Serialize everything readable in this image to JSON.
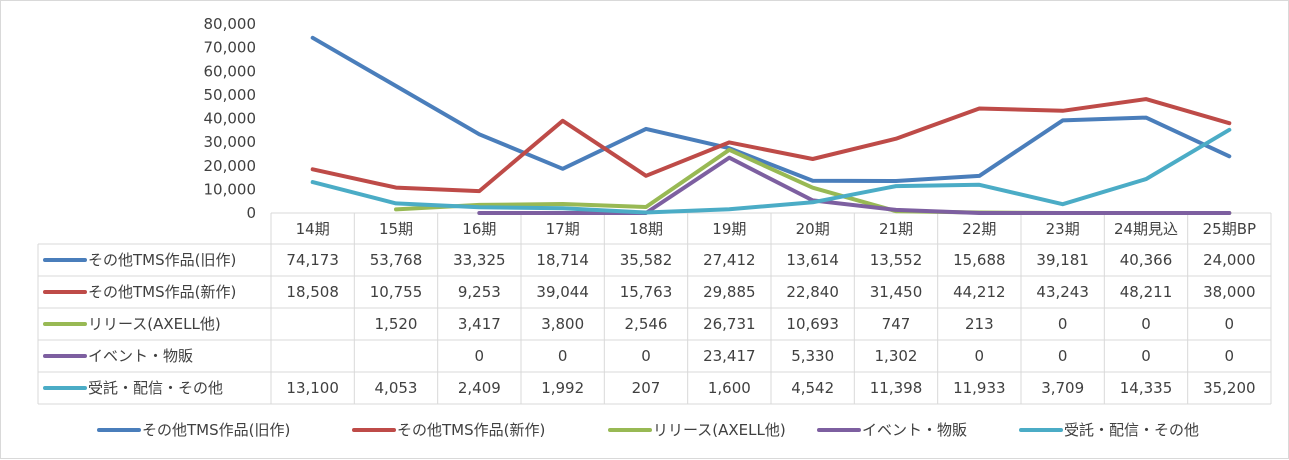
{
  "chart_data": {
    "type": "line",
    "title": "",
    "xlabel": "",
    "ylabel": "",
    "ylim": [
      0,
      80000
    ],
    "yticks": [
      "0",
      "10,000",
      "20,000",
      "30,000",
      "40,000",
      "50,000",
      "60,000",
      "70,000",
      "80,000"
    ],
    "grid": false,
    "legend": "bottom",
    "data_table": true,
    "categories": [
      "14期",
      "15期",
      "16期",
      "17期",
      "18期",
      "19期",
      "20期",
      "21期",
      "22期",
      "23期",
      "24期見込",
      "25期BP"
    ],
    "series": [
      {
        "name": "その他TMS作品(旧作)",
        "color": "#4a7ebb",
        "values": [
          74173,
          53768,
          33325,
          18714,
          35582,
          27412,
          13614,
          13552,
          15688,
          39181,
          40366,
          24000
        ],
        "labels": [
          "74,173",
          "53,768",
          "33,325",
          "18,714",
          "35,582",
          "27,412",
          "13,614",
          "13,552",
          "15,688",
          "39,181",
          "40,366",
          "24,000"
        ]
      },
      {
        "name": "その他TMS作品(新作)",
        "color": "#be4b48",
        "values": [
          18508,
          10755,
          9253,
          39044,
          15763,
          29885,
          22840,
          31450,
          44212,
          43243,
          48211,
          38000
        ],
        "labels": [
          "18,508",
          "10,755",
          "9,253",
          "39,044",
          "15,763",
          "29,885",
          "22,840",
          "31,450",
          "44,212",
          "43,243",
          "48,211",
          "38,000"
        ]
      },
      {
        "name": "リリース(AXELL他)",
        "color": "#98b954",
        "values": [
          null,
          1520,
          3417,
          3800,
          2546,
          26731,
          10693,
          747,
          213,
          0,
          0,
          0
        ],
        "labels": [
          "",
          "1,520",
          "3,417",
          "3,800",
          "2,546",
          "26,731",
          "10,693",
          "747",
          "213",
          "0",
          "0",
          "0"
        ]
      },
      {
        "name": "イベント・物販",
        "color": "#7d5fa0",
        "values": [
          null,
          null,
          0,
          0,
          0,
          23417,
          5330,
          1302,
          0,
          0,
          0,
          0
        ],
        "labels": [
          "",
          "",
          "0",
          "0",
          "0",
          "23,417",
          "5,330",
          "1,302",
          "0",
          "0",
          "0",
          "0"
        ]
      },
      {
        "name": "受託・配信・その他",
        "color": "#4bacc6",
        "values": [
          13100,
          4053,
          2409,
          1992,
          207,
          1600,
          4542,
          11398,
          11933,
          3709,
          14335,
          35200
        ],
        "labels": [
          "13,100",
          "4,053",
          "2,409",
          "1,992",
          "207",
          "1,600",
          "4,542",
          "11,398",
          "11,933",
          "3,709",
          "14,335",
          "35,200"
        ]
      }
    ]
  }
}
